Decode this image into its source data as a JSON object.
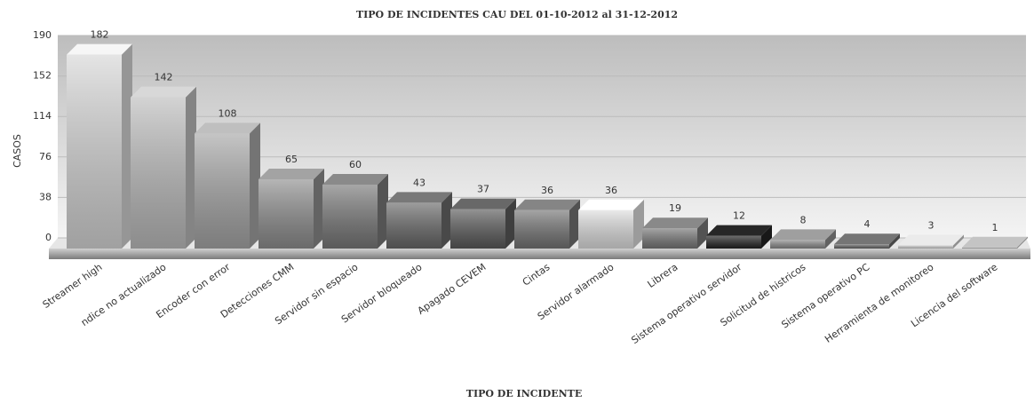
{
  "chart_data": {
    "type": "bar3d",
    "title": "TIPO DE INCIDENTES CAU DEL 01-10-2012 al 31-12-2012",
    "x_label": "TIPO DE INCIDENTE",
    "y_label": "CASOS",
    "categories": [
      "Streamer high",
      "ndice no actualizado",
      "Encoder con error",
      "Detecciones CMM",
      "Servidor sin espacio",
      "Servidor bloqueado",
      "Apagado CEVEM",
      "Cintas",
      "Servidor alarmado",
      "Librera",
      "Sistema operativo servidor",
      "Solicitud de histricos",
      "Sistema operativo PC",
      "Herramienta de monitoreo",
      "Licencia del software"
    ],
    "values": [
      182,
      142,
      108,
      65,
      60,
      43,
      37,
      36,
      36,
      19,
      12,
      8,
      4,
      3,
      1
    ],
    "colors": [
      "#d6d6d6",
      "#bcbcbc",
      "#a6a6a6",
      "#8e8e8e",
      "#787878",
      "#686868",
      "#5a5a5a",
      "#747474",
      "#dedede",
      "#777777",
      "#222222",
      "#8a8a8a",
      "#666666",
      "#cccccc",
      "#aaaaaa"
    ],
    "ylim": [
      0,
      190
    ],
    "yticks": [
      0,
      38,
      76,
      114,
      152,
      190
    ],
    "grid": true
  }
}
